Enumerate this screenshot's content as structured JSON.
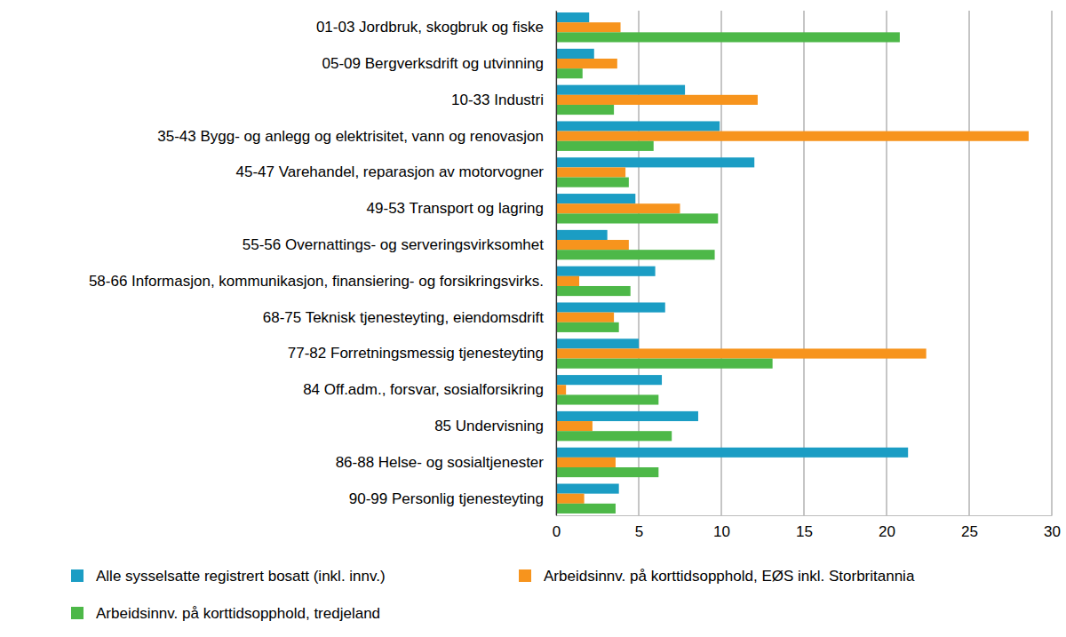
{
  "chart_data": {
    "type": "bar",
    "orientation": "horizontal",
    "grid": true,
    "legend": "bottom",
    "categories": [
      "01-03 Jordbruk, skogbruk og fiske",
      "05-09 Bergverksdrift og utvinning",
      "10-33 Industri",
      "35-43 Bygg- og anlegg og elektrisitet, vann og renovasjon",
      "45-47 Varehandel, reparasjon av motorvogner",
      "49-53 Transport og lagring",
      "55-56 Overnattings- og serveringsvirksomhet",
      "58-66 Informasjon, kommunikasjon, finansiering- og forsikringsvirks.",
      "68-75 Teknisk tjenesteyting, eiendomsdrift",
      "77-82 Forretningsmessig tjenesteyting",
      "84 Off.adm., forsvar, sosialforsikring",
      "85 Undervisning",
      "86-88 Helse- og sosialtjenester",
      "90-99 Personlig tjenesteyting"
    ],
    "series": [
      {
        "name": "Alle sysselsatte registrert bosatt (inkl. innv.)",
        "color": "#1b9dc4",
        "values": [
          2.0,
          2.3,
          7.8,
          9.9,
          12.0,
          4.8,
          3.1,
          6.0,
          6.6,
          5.0,
          6.4,
          8.6,
          21.3,
          3.8
        ]
      },
      {
        "name": "Arbeidsinnv. på korttidsopphold, EØS inkl. Storbritannia",
        "color": "#f7941d",
        "values": [
          3.9,
          3.7,
          12.2,
          28.6,
          4.2,
          7.5,
          4.4,
          1.4,
          3.5,
          22.4,
          0.6,
          2.2,
          3.6,
          1.7
        ]
      },
      {
        "name": "Arbeidsinnv. på korttidsopphold, tredjeland",
        "color": "#4db848",
        "values": [
          20.8,
          1.6,
          3.5,
          5.9,
          4.4,
          9.8,
          9.6,
          4.5,
          3.8,
          13.1,
          6.2,
          7.0,
          6.2,
          3.6
        ]
      }
    ],
    "xlim": [
      0,
      30
    ],
    "xticks": [
      0,
      5,
      10,
      15,
      20,
      25,
      30
    ]
  }
}
